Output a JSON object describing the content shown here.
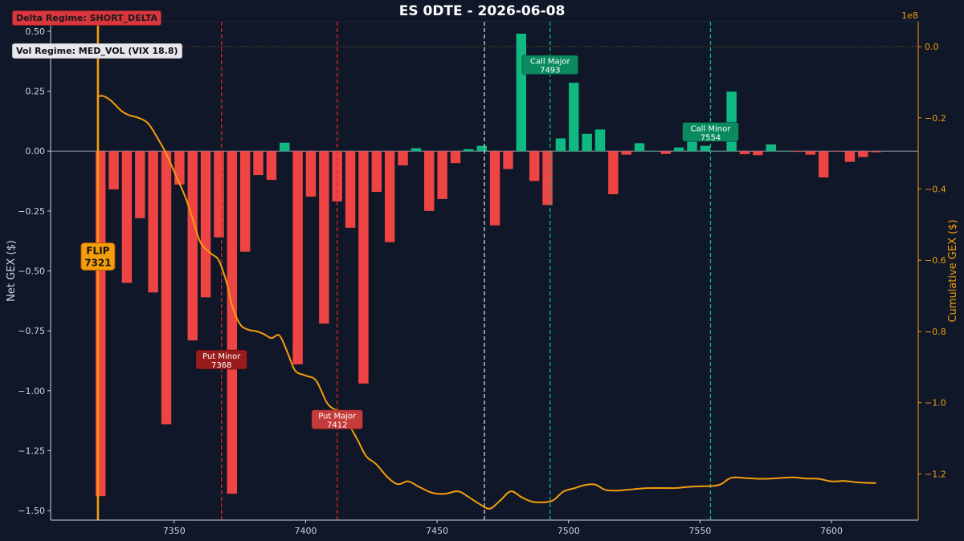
{
  "chart_data": {
    "type": "bar",
    "title": "ES 0DTE  -  2026-06-08",
    "xlabel": "",
    "ylabel": "Net GEX ($)",
    "ylabel_right": "Cumulative GEX ($)",
    "right_axis_multiplier": "1e8",
    "xlim": [
      7303,
      7633
    ],
    "ylim": [
      -1.54,
      0.54
    ],
    "ylim_right": [
      -1.33,
      0.07
    ],
    "x_ticks": [
      7350,
      7400,
      7450,
      7500,
      7550,
      7600
    ],
    "y_ticks": [
      0.5,
      0.25,
      0.0,
      -0.25,
      -0.5,
      -0.75,
      -1.0,
      -1.25,
      -1.5
    ],
    "y_tick_labels": [
      "0.50",
      "0.25",
      "0.00",
      "−0.25",
      "−0.50",
      "−0.75",
      "−1.00",
      "−1.25",
      "−1.50"
    ],
    "y_right_ticks": [
      0.0,
      -0.2,
      -0.4,
      -0.6,
      -0.8,
      -1.0,
      -1.2
    ],
    "y_right_tick_labels": [
      "0.0",
      "−0.2",
      "−0.4",
      "−0.6",
      "−0.8",
      "−1.0",
      "−1.2"
    ],
    "grid": false,
    "colors": {
      "positive": "#10b981",
      "negative": "#ef4444",
      "cumulative": "#f59e0b",
      "flip": "#f59e0b",
      "put_line": "#dc2626",
      "call_line": "#10b981",
      "spot_line": "#cbd5e1",
      "axis": "#cbd5e1",
      "right_axis": "#f59e0b"
    },
    "series": [
      {
        "strikes": [
          7322,
          7327,
          7332,
          7337,
          7342,
          7347,
          7352,
          7357,
          7362,
          7367,
          7372,
          7377,
          7382,
          7387,
          7392,
          7397,
          7402,
          7407,
          7412,
          7417,
          7422,
          7427,
          7432,
          7437,
          7442,
          7447,
          7452,
          7457,
          7462,
          7467,
          7472,
          7477,
          7482,
          7487,
          7492,
          7497,
          7502,
          7507,
          7512,
          7517,
          7522,
          7527,
          7532,
          7537,
          7542,
          7547,
          7552,
          7557,
          7562,
          7567,
          7572,
          7577,
          7582,
          7587,
          7592,
          7597,
          7602,
          7607,
          7612,
          7617
        ],
        "values": [
          -1.44,
          -0.16,
          -0.55,
          -0.28,
          -0.59,
          -1.14,
          -0.14,
          -0.79,
          -0.61,
          -0.36,
          -1.43,
          -0.42,
          -0.1,
          -0.12,
          0.035,
          -0.89,
          -0.19,
          -0.72,
          -0.21,
          -0.32,
          -0.97,
          -0.17,
          -0.38,
          -0.06,
          0.012,
          -0.25,
          -0.2,
          -0.05,
          0.008,
          0.022,
          -0.31,
          -0.075,
          0.49,
          -0.125,
          -0.225,
          0.053,
          0.285,
          0.072,
          0.09,
          -0.18,
          -0.015,
          0.033,
          0.0,
          -0.012,
          0.015,
          0.09,
          0.022,
          0.0,
          0.248,
          -0.013,
          -0.017,
          0.028,
          0.0,
          -0.003,
          -0.015,
          -0.11,
          -0.002,
          -0.045,
          -0.025,
          -0.005
        ]
      },
      {
        "name": "Cumulative GEX",
        "x": [
          7321,
          7323,
          7326,
          7330,
          7333,
          7336,
          7340,
          7344,
          7347,
          7351,
          7354,
          7357,
          7360,
          7364,
          7367,
          7370,
          7372,
          7375,
          7378,
          7381,
          7384,
          7387,
          7390,
          7393,
          7396,
          7400,
          7404,
          7408,
          7411,
          7414,
          7417,
          7420,
          7423,
          7427,
          7431,
          7435,
          7439,
          7443,
          7448,
          7453,
          7458,
          7462,
          7466,
          7470,
          7474,
          7478,
          7482,
          7486,
          7490,
          7494,
          7498,
          7502,
          7506,
          7510,
          7514,
          7518,
          7522,
          7530,
          7540,
          7545,
          7550,
          7555,
          7558,
          7562,
          7568,
          7575,
          7585,
          7590,
          7595,
          7600,
          7605,
          7610,
          7617
        ],
        "values": [
          -0.14,
          -0.139,
          -0.152,
          -0.181,
          -0.193,
          -0.199,
          -0.215,
          -0.261,
          -0.301,
          -0.368,
          -0.418,
          -0.482,
          -0.55,
          -0.581,
          -0.601,
          -0.664,
          -0.727,
          -0.779,
          -0.795,
          -0.799,
          -0.807,
          -0.819,
          -0.811,
          -0.857,
          -0.91,
          -0.924,
          -0.938,
          -0.999,
          -1.019,
          -1.027,
          -1.068,
          -1.108,
          -1.15,
          -1.174,
          -1.208,
          -1.229,
          -1.221,
          -1.236,
          -1.253,
          -1.256,
          -1.249,
          -1.265,
          -1.284,
          -1.298,
          -1.275,
          -1.249,
          -1.265,
          -1.278,
          -1.28,
          -1.275,
          -1.25,
          -1.241,
          -1.232,
          -1.23,
          -1.245,
          -1.247,
          -1.245,
          -1.24,
          -1.24,
          -1.237,
          -1.235,
          -1.234,
          -1.229,
          -1.211,
          -1.212,
          -1.214,
          -1.21,
          -1.213,
          -1.214,
          -1.221,
          -1.22,
          -1.224,
          -1.226
        ]
      }
    ],
    "levels": [
      {
        "label": "FLIP",
        "value": "7321",
        "x": 7321,
        "kind": "flip"
      },
      {
        "label": "Put Minor",
        "value": "7368",
        "x": 7368,
        "kind": "put",
        "label_y": -0.87
      },
      {
        "label": "Put Major",
        "value": "7412",
        "x": 7412,
        "kind": "put",
        "label_y": -1.12
      },
      {
        "label": "Call Major",
        "value": "7493",
        "x": 7493,
        "kind": "call",
        "label_y": 0.36
      },
      {
        "label": "Call Minor",
        "value": "7554",
        "x": 7554,
        "kind": "call",
        "label_y": 0.08
      }
    ],
    "spot_x": 7468,
    "flip_label_y": -0.44
  },
  "badges": {
    "delta": "Delta Regime: SHORT_DELTA",
    "vol": "Vol Regime: MED_VOL  (VIX 18.8)"
  }
}
